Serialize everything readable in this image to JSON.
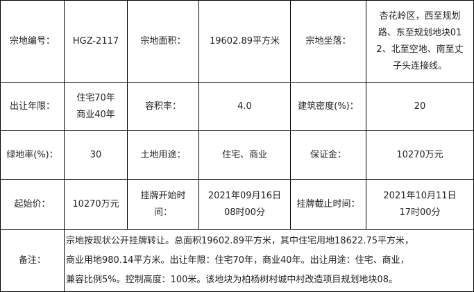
{
  "rows": [
    {
      "cells": [
        {
          "lines": [
            "宗地编号："
          ]
        },
        {
          "lines": [
            "HGZ-2117"
          ]
        },
        {
          "lines": [
            "宗地面积："
          ]
        },
        {
          "lines": [
            "19602.89平方米"
          ]
        },
        {
          "lines": [
            "宗地坐落："
          ]
        },
        {
          "lines": [
            "杏花岭区，西至规划",
            "路、东至规划地块01",
            "2、北至空地、南至丈",
            "子头连接线。"
          ]
        }
      ]
    },
    {
      "cells": [
        {
          "lines": [
            "出让年限："
          ]
        },
        {
          "lines": [
            "住宅70年",
            "商业40年"
          ]
        },
        {
          "lines": [
            "容积率："
          ]
        },
        {
          "lines": [
            "4.0"
          ]
        },
        {
          "lines": [
            "建筑密度(%)："
          ]
        },
        {
          "lines": [
            "20"
          ]
        }
      ]
    },
    {
      "cells": [
        {
          "lines": [
            "绿地率(%)："
          ]
        },
        {
          "lines": [
            "30"
          ]
        },
        {
          "lines": [
            "土地用途："
          ]
        },
        {
          "lines": [
            "住宅、商业"
          ]
        },
        {
          "lines": [
            "保证金："
          ]
        },
        {
          "lines": [
            "10270万元"
          ]
        }
      ]
    },
    {
      "cells": [
        {
          "lines": [
            "起始价："
          ]
        },
        {
          "lines": [
            "10270万元"
          ]
        },
        {
          "lines": [
            "挂牌开始时",
            "间："
          ]
        },
        {
          "lines": [
            "2021年09月16日",
            "08时00分"
          ]
        },
        {
          "lines": [
            "挂牌截止时间："
          ]
        },
        {
          "lines": [
            "2021年10月11日",
            "17时00分"
          ]
        }
      ]
    }
  ],
  "note": {
    "label": "备注：",
    "lines": [
      "宗地按现状公开挂牌转让。总面积19602.89平方米，其中住宅用地18622.75平方米，",
      "商业用地980.14平方米。出让年限：住宅70年，商业40年。出让用途：住宅、商业，",
      "兼容比例5%。控制高度：100米。该地块为柏杨树村城中村改造项目规划地块08。"
    ]
  }
}
